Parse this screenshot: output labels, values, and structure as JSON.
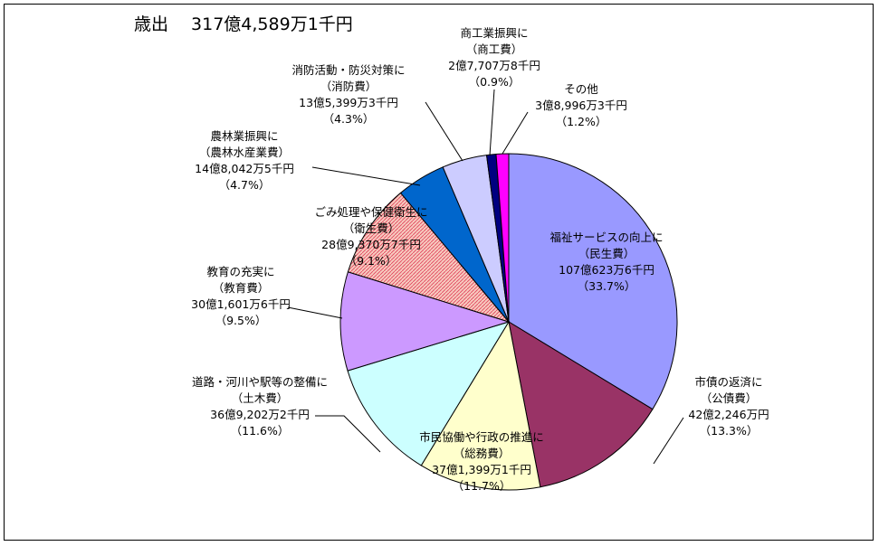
{
  "chart_data": {
    "type": "pie",
    "title": "歳出　 317億4,589万1千円",
    "slices": [
      {
        "name": "民生費",
        "lines": [
          "福祉サービスの向上に",
          "（民生費）",
          "107億623万6千円",
          "（33.7%）"
        ],
        "percent": 33.7,
        "color": "#9999ff",
        "hatch": false
      },
      {
        "name": "公債費",
        "lines": [
          "市債の返済に",
          "（公債費）",
          "42億2,246万円",
          "（13.3%）"
        ],
        "percent": 13.3,
        "color": "#993366",
        "hatch": false
      },
      {
        "name": "総務費",
        "lines": [
          "市民協働や行政の推進に",
          "（総務費）",
          "37億1,399万1千円",
          "（11.7%）"
        ],
        "percent": 11.7,
        "color": "#ffffcc",
        "hatch": false
      },
      {
        "name": "土木費",
        "lines": [
          "道路・河川や駅等の整備に",
          "（土木費）",
          "36億9,202万2千円",
          "（11.6%）"
        ],
        "percent": 11.6,
        "color": "#ccffff",
        "hatch": false
      },
      {
        "name": "教育費",
        "lines": [
          "教育の充実に",
          "（教育費）",
          "30億1,601万6千円",
          "（9.5%）"
        ],
        "percent": 9.5,
        "color": "#cc99ff",
        "hatch": false
      },
      {
        "name": "衛生費",
        "lines": [
          "ごみ処理や保健衛生に",
          "（衛生費）",
          "28億9,370万7千円",
          "（9.1%）"
        ],
        "percent": 9.1,
        "color": "#f2b3a6",
        "hatch": true
      },
      {
        "name": "農林水産業費",
        "lines": [
          "農林業振興に",
          "（農林水産業費）",
          "14億8,042万5千円",
          "（4.7%）"
        ],
        "percent": 4.7,
        "color": "#0066cc",
        "hatch": false
      },
      {
        "name": "消防費",
        "lines": [
          "消防活動・防災対策に",
          "（消防費）",
          "13億5,399万3千円",
          "（4.3%）"
        ],
        "percent": 4.3,
        "color": "#ccccff",
        "hatch": false
      },
      {
        "name": "商工費",
        "lines": [
          "商工業振興に",
          "（商工費）",
          "2億7,707万8千円",
          "（0.9%）"
        ],
        "percent": 0.9,
        "color": "#000080",
        "hatch": false
      },
      {
        "name": "その他",
        "lines": [
          "その他",
          "3億8,996万3千円",
          "（1.2%）"
        ],
        "percent": 1.2,
        "color": "#ff00ff",
        "hatch": false
      }
    ]
  }
}
